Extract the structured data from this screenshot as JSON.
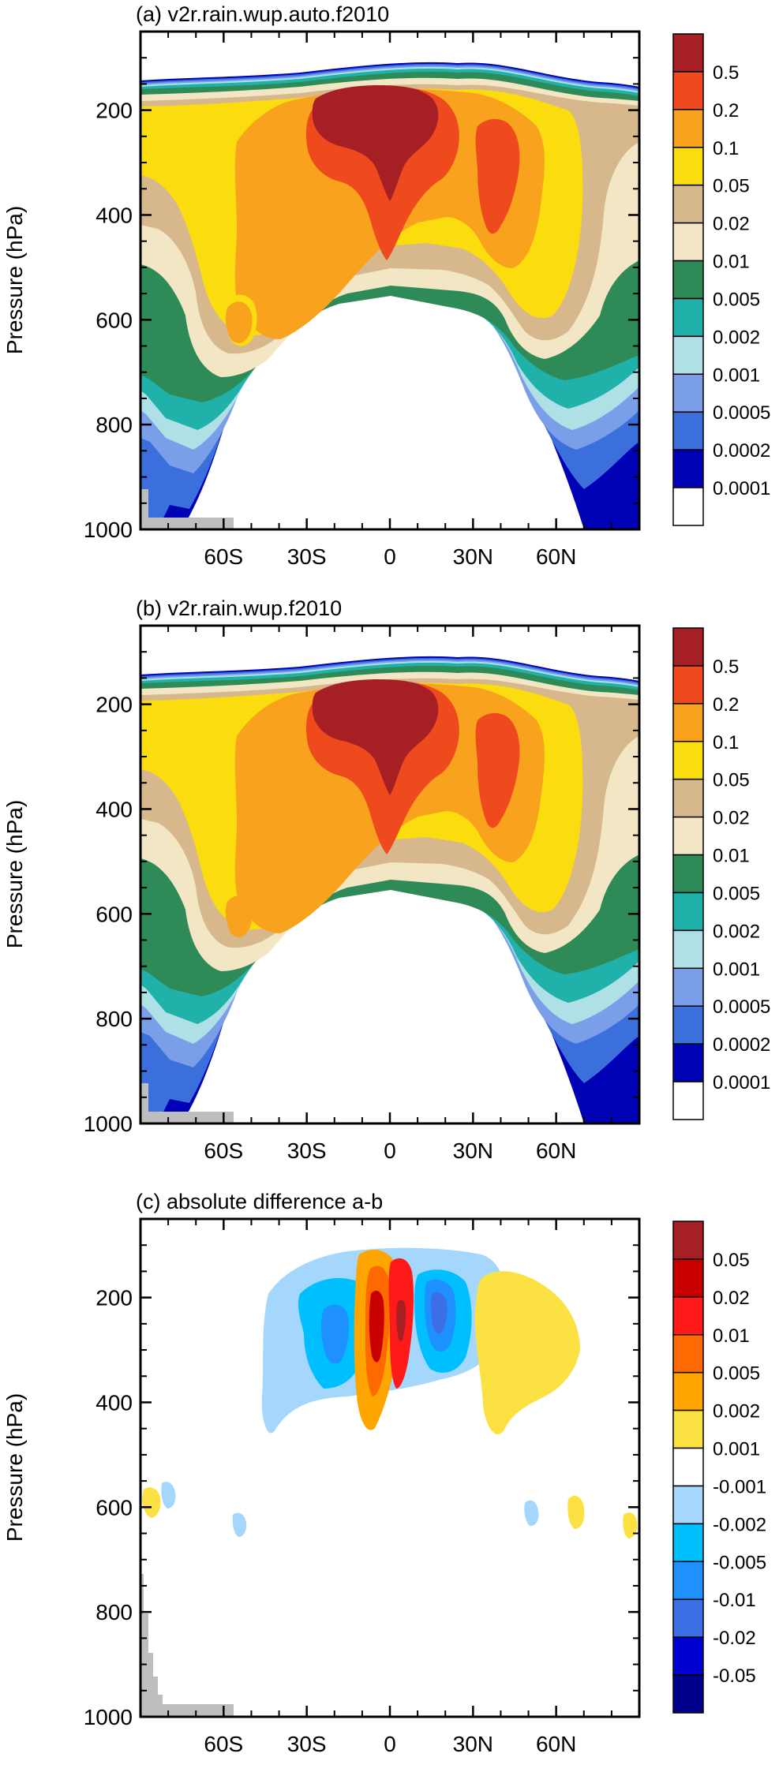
{
  "chart_data": [
    {
      "type": "contour",
      "title": "(a) v2r.rain.wup.auto.f2010",
      "ylabel": "Pressure (hPa)",
      "xlabel": "",
      "ylim": [
        1000,
        50
      ],
      "yticks": [
        1000,
        800,
        600,
        400,
        200
      ],
      "xticks": [
        "60S",
        "30S",
        "0",
        "30N",
        "60N"
      ],
      "xtick_values": [
        -60,
        -30,
        0,
        30,
        60
      ],
      "xlim": [
        -90,
        90
      ],
      "legend": {
        "labels": [
          "0.5",
          "0.2",
          "0.1",
          "0.05",
          "0.02",
          "0.01",
          "0.005",
          "0.002",
          "0.001",
          "0.0005",
          "0.0002",
          "0.0001"
        ],
        "colors": [
          "#a51f25",
          "#ee4a1d",
          "#f9a21d",
          "#fbdc0e",
          "#d7b88d",
          "#f2e6c4",
          "#2e8b57",
          "#20b2aa",
          "#afe0e6",
          "#7b9ee8",
          "#3b6fdc",
          "#0000b5",
          "#ffffff"
        ]
      }
    },
    {
      "type": "contour",
      "title": "(b) v2r.rain.wup.f2010",
      "ylabel": "Pressure (hPa)",
      "xlabel": "",
      "ylim": [
        1000,
        50
      ],
      "yticks": [
        1000,
        800,
        600,
        400,
        200
      ],
      "xticks": [
        "60S",
        "30S",
        "0",
        "30N",
        "60N"
      ],
      "xtick_values": [
        -60,
        -30,
        0,
        30,
        60
      ],
      "xlim": [
        -90,
        90
      ],
      "legend": {
        "labels": [
          "0.5",
          "0.2",
          "0.1",
          "0.05",
          "0.02",
          "0.01",
          "0.005",
          "0.002",
          "0.001",
          "0.0005",
          "0.0002",
          "0.0001"
        ],
        "colors": [
          "#a51f25",
          "#ee4a1d",
          "#f9a21d",
          "#fbdc0e",
          "#d7b88d",
          "#f2e6c4",
          "#2e8b57",
          "#20b2aa",
          "#afe0e6",
          "#7b9ee8",
          "#3b6fdc",
          "#0000b5",
          "#ffffff"
        ]
      }
    },
    {
      "type": "contour",
      "title": "(c) absolute difference a-b",
      "ylabel": "Pressure (hPa)",
      "xlabel": "",
      "ylim": [
        1000,
        50
      ],
      "yticks": [
        1000,
        800,
        600,
        400,
        200
      ],
      "xticks": [
        "60S",
        "30S",
        "0",
        "30N",
        "60N"
      ],
      "xtick_values": [
        -60,
        -30,
        0,
        30,
        60
      ],
      "xlim": [
        -90,
        90
      ],
      "legend": {
        "labels": [
          "0.05",
          "0.02",
          "0.01",
          "0.005",
          "0.002",
          "0.001",
          "-0.001",
          "-0.002",
          "-0.005",
          "-0.01",
          "-0.02",
          "-0.05"
        ],
        "colors": [
          "#a51f25",
          "#c80000",
          "#ff1a1a",
          "#ff6a00",
          "#ffa500",
          "#fbe142",
          "#ffffff",
          "#a5d6fb",
          "#00bfff",
          "#1e90ff",
          "#3c6ee6",
          "#0000d0",
          "#00008b"
        ]
      }
    }
  ]
}
